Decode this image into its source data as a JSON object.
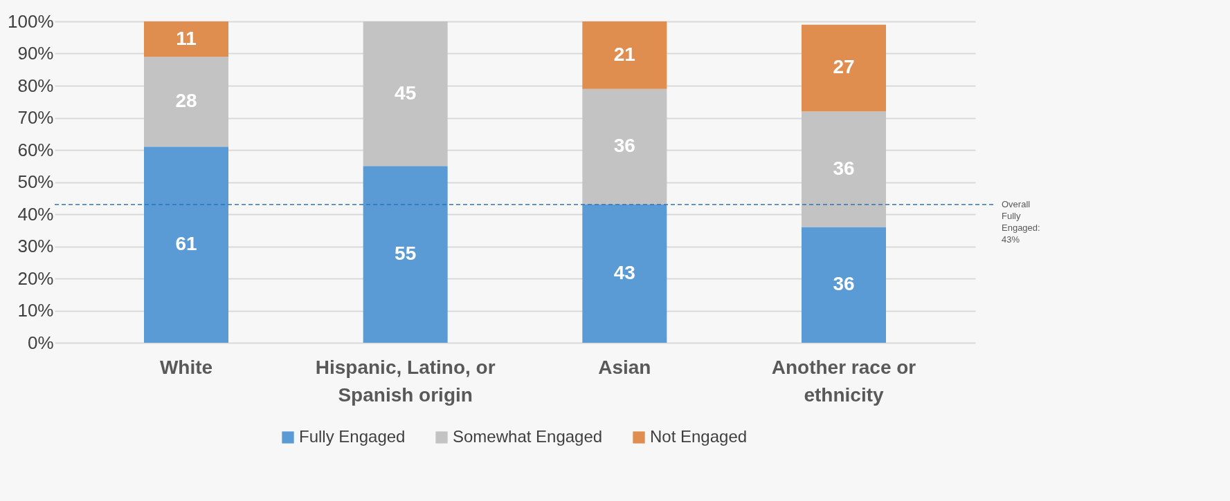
{
  "chart_data": {
    "type": "bar",
    "stacked": true,
    "categories": [
      "White",
      "Hispanic, Latino, or Spanish origin",
      "Asian",
      "Another race or ethnicity"
    ],
    "series": [
      {
        "name": "Fully Engaged",
        "color": "#5b9bd5",
        "values": [
          61,
          55,
          43,
          36
        ]
      },
      {
        "name": "Somewhat Engaged",
        "color": "#c3c3c3",
        "values": [
          28,
          45,
          36,
          36
        ]
      },
      {
        "name": "Not Engaged",
        "color": "#e08e4f",
        "values": [
          11,
          null,
          21,
          27
        ]
      }
    ],
    "ylim": [
      0,
      100
    ],
    "yticks": [
      {
        "value": 0,
        "label": "0%"
      },
      {
        "value": 10,
        "label": "10%"
      },
      {
        "value": 20,
        "label": "20%"
      },
      {
        "value": 30,
        "label": "30%"
      },
      {
        "value": 40,
        "label": "40%"
      },
      {
        "value": 50,
        "label": "50%"
      },
      {
        "value": 60,
        "label": "60%"
      },
      {
        "value": 70,
        "label": "70%"
      },
      {
        "value": 80,
        "label": "80%"
      },
      {
        "value": 90,
        "label": "90%"
      },
      {
        "value": 100,
        "label": "100%"
      }
    ],
    "ref_lines": [
      {
        "axis": "y",
        "value": 43,
        "label": "Overall Fully Engaged: 43%",
        "color": "#2e75b6",
        "line_style": "dashed"
      }
    ],
    "data_labels": true,
    "grid": "y",
    "legend": "bottom"
  }
}
